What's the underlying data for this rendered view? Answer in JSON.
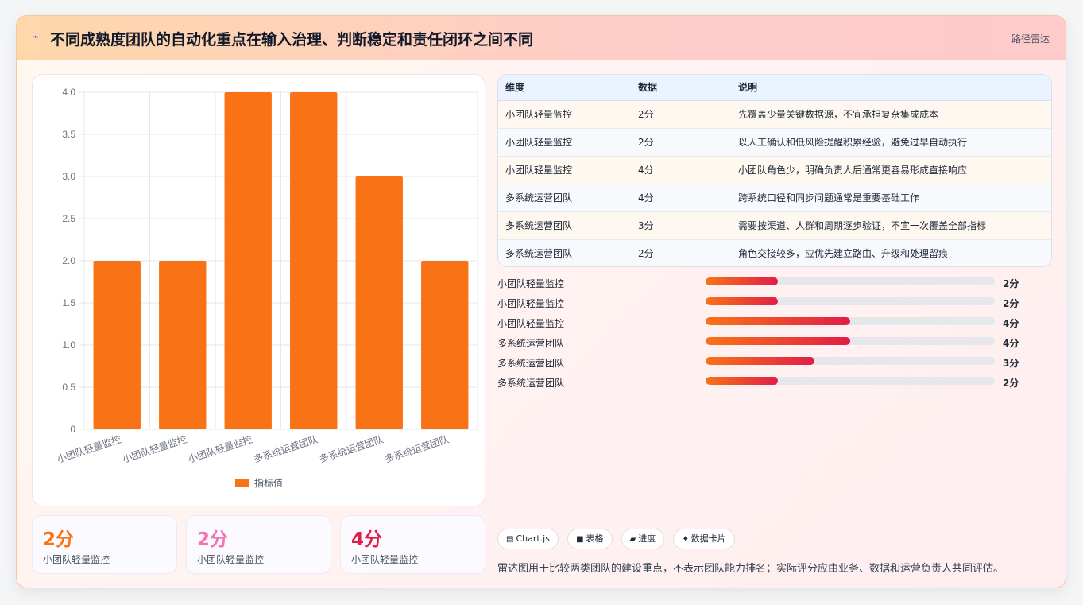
{
  "header": {
    "title": "不同成熟度团队的自动化重点在输入治理、判断稳定和责任闭环之间不同",
    "tag": "路径雷达"
  },
  "chart_data": {
    "type": "bar",
    "categories": [
      "小团队轻量监控",
      "小团队轻量监控",
      "小团队轻量监控",
      "多系统运营团队",
      "多系统运营团队",
      "多系统运营团队"
    ],
    "series": [
      {
        "name": "指标值",
        "values": [
          2,
          2,
          4,
          4,
          3,
          2
        ]
      }
    ],
    "ylim": [
      0,
      4
    ],
    "yticks": [
      "0",
      "0.5",
      "1.0",
      "1.5",
      "2.0",
      "2.5",
      "3.0",
      "3.5",
      "4.0"
    ],
    "ytick_values": [
      0,
      0.5,
      1,
      1.5,
      2,
      2.5,
      3,
      3.5,
      4
    ],
    "grid": true,
    "legend_position": "bottom",
    "colors": {
      "bar": "#f97316",
      "grid": "#e5e7eb",
      "axis_text": "#6b7280"
    }
  },
  "stats": [
    {
      "value": "2分",
      "label": "小团队轻量监控",
      "color": "#f97316"
    },
    {
      "value": "2分",
      "label": "小团队轻量监控",
      "color": "#f472b6"
    },
    {
      "value": "4分",
      "label": "小团队轻量监控",
      "color": "#e11d48"
    }
  ],
  "table": {
    "headers": [
      "维度",
      "数据",
      "说明"
    ],
    "rows": [
      [
        "小团队轻量监控",
        "2分",
        "先覆盖少量关键数据源，不宜承担复杂集成成本"
      ],
      [
        "小团队轻量监控",
        "2分",
        "以人工确认和低风险提醒积累经验，避免过早自动执行"
      ],
      [
        "小团队轻量监控",
        "4分",
        "小团队角色少，明确负责人后通常更容易形成直接响应"
      ],
      [
        "多系统运营团队",
        "4分",
        "跨系统口径和同步问题通常是重要基础工作"
      ],
      [
        "多系统运营团队",
        "3分",
        "需要按渠道、人群和周期逐步验证，不宜一次覆盖全部指标"
      ],
      [
        "多系统运营团队",
        "2分",
        "角色交接较多，应优先建立路由、升级和处理留痕"
      ]
    ]
  },
  "progress": [
    {
      "label": "小团队轻量监控",
      "value": "2分",
      "fraction": 0.25
    },
    {
      "label": "小团队轻量监控",
      "value": "2分",
      "fraction": 0.25
    },
    {
      "label": "小团队轻量监控",
      "value": "4分",
      "fraction": 0.5
    },
    {
      "label": "多系统运营团队",
      "value": "4分",
      "fraction": 0.5
    },
    {
      "label": "多系统运营团队",
      "value": "3分",
      "fraction": 0.375
    },
    {
      "label": "多系统运营团队",
      "value": "2分",
      "fraction": 0.25
    }
  ],
  "chips": [
    {
      "icon": "chart-icon",
      "glyph": "▤",
      "label": "Chart.js"
    },
    {
      "icon": "table-icon",
      "glyph": "■",
      "label": "表格"
    },
    {
      "icon": "progress-icon",
      "glyph": "▰",
      "label": "进度"
    },
    {
      "icon": "sparkle-icon",
      "glyph": "✦",
      "label": "数据卡片"
    }
  ],
  "note": "雷达图用于比较两类团队的建设重点，不表示团队能力排名；实际评分应由业务、数据和运营负责人共同评估。"
}
